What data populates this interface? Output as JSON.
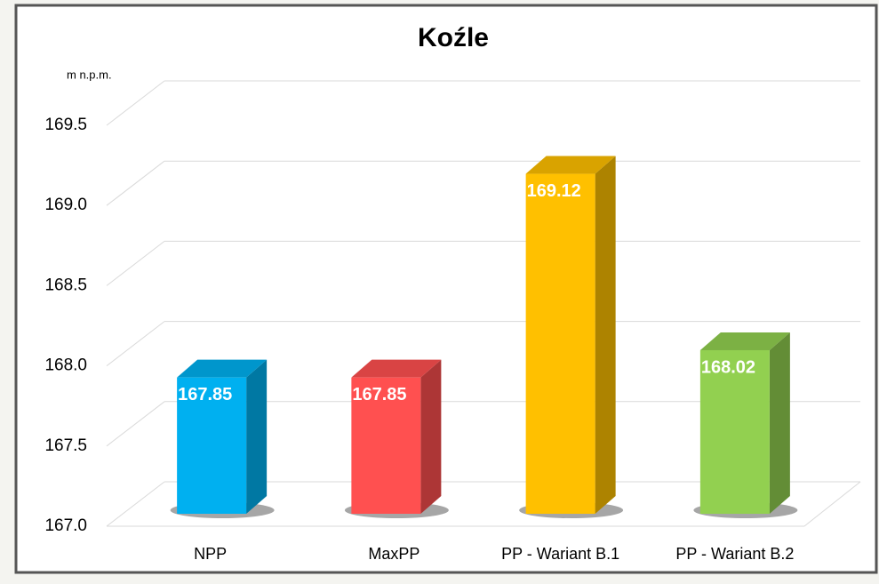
{
  "chart_data": {
    "type": "bar3d",
    "title": "Koźle",
    "y_axis_label": "m n.p.m.",
    "categories": [
      "NPP",
      "MaxPP",
      "PP - Wariant B.1",
      "PP - Wariant B.2"
    ],
    "values": [
      167.85,
      167.85,
      169.12,
      168.02
    ],
    "colors": [
      "#00b0f0",
      "#ff5050",
      "#ffc000",
      "#92d050"
    ],
    "ylim": [
      167,
      169.5
    ],
    "yticks": [
      {
        "value": 167,
        "label": "167.0"
      },
      167.5,
      {
        "value": 168,
        "label": "168.0"
      },
      168.5,
      {
        "value": 169,
        "label": "169.0"
      },
      169.5
    ],
    "grid": true
  }
}
